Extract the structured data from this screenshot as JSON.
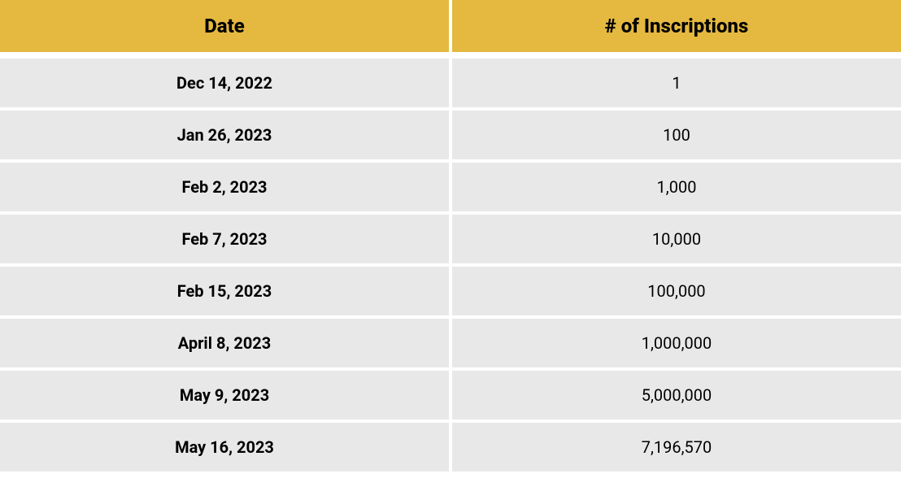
{
  "table": {
    "type": "table",
    "header_bg_color": "#e5b940",
    "row_bg_color": "#e8e8e8",
    "divider_color": "#ffffff",
    "text_color": "#000000",
    "header_fontsize": 24,
    "body_fontsize": 20,
    "header_fontweight": 800,
    "date_fontweight": 700,
    "count_fontweight": 400,
    "row_gap": 4,
    "columns": [
      "Date",
      "# of Inscriptions"
    ],
    "rows": [
      {
        "date": "Dec 14, 2022",
        "count": "1"
      },
      {
        "date": "Jan 26, 2023",
        "count": "100"
      },
      {
        "date": "Feb 2, 2023",
        "count": "1,000"
      },
      {
        "date": "Feb 7, 2023",
        "count": "10,000"
      },
      {
        "date": "Feb 15, 2023",
        "count": "100,000"
      },
      {
        "date": "April 8, 2023",
        "count": "1,000,000"
      },
      {
        "date": "May 9, 2023",
        "count": "5,000,000"
      },
      {
        "date": "May 16, 2023",
        "count": "7,196,570"
      }
    ]
  }
}
